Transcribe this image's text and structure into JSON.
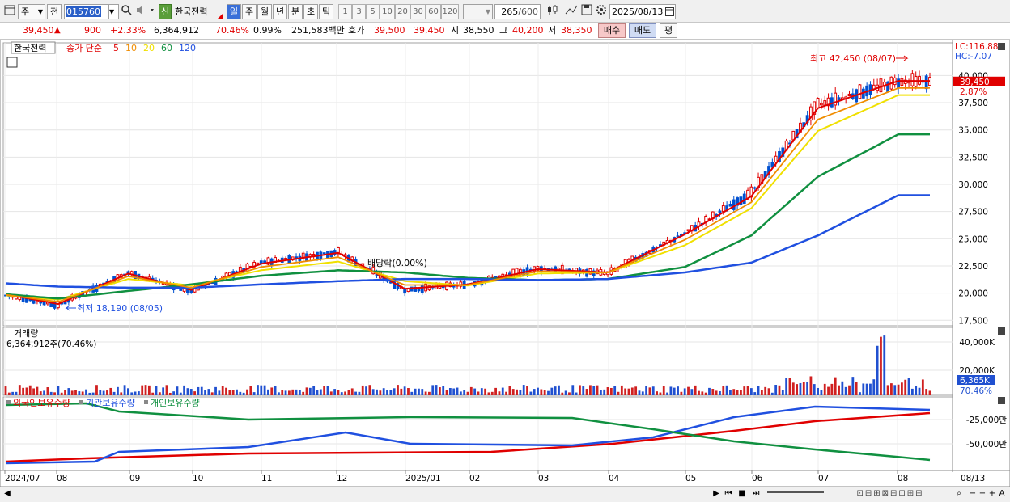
{
  "toolbar": {
    "period_main": "주",
    "prev_label": "전",
    "stock_code": "015760",
    "new_badge": "신",
    "stock_name": "한국전력",
    "periods": [
      "일",
      "주",
      "월",
      "년",
      "분",
      "초",
      "틱"
    ],
    "active_period": "일",
    "intervals": [
      "1",
      "3",
      "5",
      "10",
      "20",
      "30",
      "60",
      "120"
    ],
    "count_value": "265",
    "count_max": "/600",
    "date": "2025/08/13"
  },
  "quote": {
    "price": "39,450",
    "change": "900",
    "change_pct": "+2.33%",
    "volume": "6,364,912",
    "volume_ratio": "70.46%",
    "turnover": "0.99%",
    "amount": "251,583백만",
    "hoga_label": "호가",
    "bid": "39,500",
    "ask": "39,450",
    "open_label": "시",
    "open": "38,550",
    "high_label": "고",
    "high": "40,200",
    "low_label": "저",
    "low": "38,350",
    "buy_label": "매수",
    "sell_label": "매도",
    "eval_label": "평"
  },
  "price_panel": {
    "name_tag": "한국전력",
    "ma_title": "종가 단순",
    "ma_periods": [
      "5",
      "10",
      "20",
      "60",
      "120"
    ],
    "ma_colors": [
      "#e00000",
      "#f08c00",
      "#f0e000",
      "#109040",
      "#2050e0"
    ],
    "lc_label": "LC:116.88",
    "hc_label": "HC:-7.07",
    "current_price_tag": "39,450",
    "current_pct_tag": "2.87%",
    "y_ticks": [
      "40,000",
      "37,500",
      "35,000",
      "32,500",
      "30,000",
      "27,500",
      "25,000",
      "22,500",
      "20,000",
      "17,500"
    ],
    "max_label": "최고 42,450 (08/07)",
    "min_label": "최저 18,190 (08/05)",
    "dividend_label": "배당락(0.00%)"
  },
  "volume_panel": {
    "title": "거래량",
    "value_label": "6,364,912주(70.46%)",
    "y_ticks": [
      "40,000K",
      "20,000K"
    ],
    "current_tag": "6,365K",
    "current_pct": "70.46%"
  },
  "holding_panel": {
    "legend": [
      "외국인보유수량",
      "기관보유수량",
      "개인보유수량"
    ],
    "legend_colors": [
      "#e00000",
      "#2050e0",
      "#109040"
    ],
    "y_ticks": [
      "-25,000만",
      "-50,000만"
    ]
  },
  "x_axis": {
    "labels": [
      "2024/07",
      "08",
      "09",
      "10",
      "11",
      "12",
      "2025/01",
      "02",
      "03",
      "04",
      "05",
      "06",
      "07",
      "08"
    ],
    "right_label": "08/13"
  },
  "chart_data": {
    "type": "candlestick",
    "title": "한국전력",
    "xlabel": "",
    "ylabel": "",
    "x": [
      "2024/07",
      "2024/08",
      "2024/09",
      "2024/10",
      "2024/11",
      "2024/12",
      "2025/01",
      "2025/02",
      "2025/03",
      "2025/04",
      "2025/05",
      "2025/06",
      "2025/07",
      "2025/08"
    ],
    "ylim": [
      17000,
      43000
    ],
    "series": [
      {
        "name": "종가",
        "values": [
          19800,
          18900,
          21900,
          20200,
          22800,
          23800,
          20300,
          20800,
          22300,
          21800,
          25500,
          29200,
          37300,
          39450
        ]
      },
      {
        "name": "5",
        "values": [
          19900,
          19000,
          21800,
          20300,
          22700,
          23700,
          20400,
          20800,
          22200,
          21900,
          25400,
          28900,
          37000,
          39500
        ]
      },
      {
        "name": "20",
        "values": [
          19800,
          19400,
          21300,
          20700,
          22100,
          22900,
          21100,
          20700,
          21800,
          21900,
          24400,
          27800,
          34900,
          38200
        ]
      },
      {
        "name": "60",
        "values": [
          19900,
          19500,
          20200,
          20800,
          21600,
          22100,
          21900,
          21400,
          21200,
          21300,
          22400,
          25300,
          30700,
          34600
        ]
      },
      {
        "name": "120",
        "values": [
          20900,
          20600,
          20500,
          20500,
          20800,
          21100,
          21300,
          21300,
          21200,
          21300,
          21900,
          22800,
          25300,
          29000
        ]
      }
    ],
    "volume_ticks": [
      "40,000K",
      "20,000K"
    ],
    "holding_series": [
      "외국인보유수량",
      "기관보유수량",
      "개인보유수량"
    ]
  }
}
